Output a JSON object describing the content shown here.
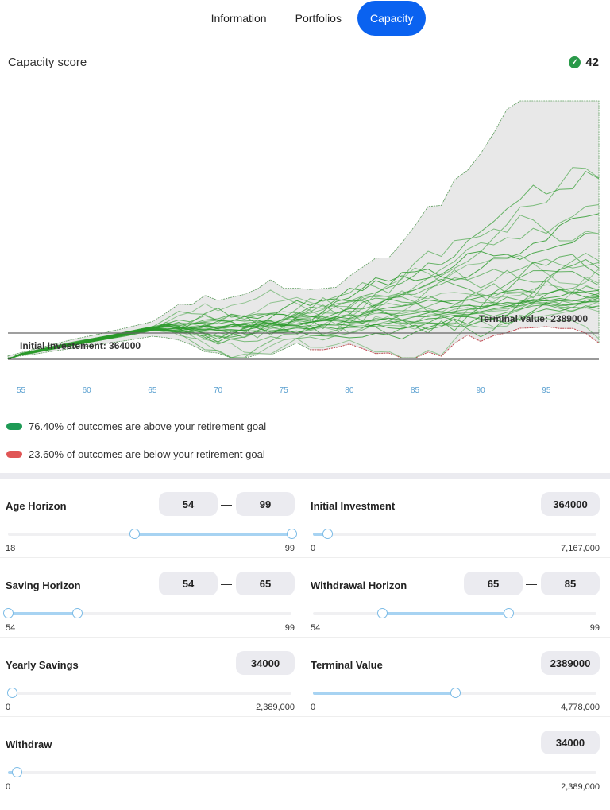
{
  "tabs": [
    "Information",
    "Portfolios",
    "Capacity"
  ],
  "active_tab": 2,
  "score": {
    "label": "Capacity score",
    "value": "42",
    "icon": "check-circle-icon"
  },
  "chart_data": {
    "type": "line",
    "x_range": [
      54,
      99
    ],
    "x_ticks": [
      "55",
      "60",
      "65",
      "70",
      "75",
      "80",
      "85",
      "90",
      "95"
    ],
    "initial_label": "Initial Investement: 364000",
    "terminal_label": "Terminal value: 2389000",
    "initial_investment": 364000,
    "terminal_value": 2389000,
    "simulations": 30,
    "colors": {
      "paths": "#2a9a2a",
      "band": "#e8e8e8",
      "low": "#d05060"
    }
  },
  "legend": [
    {
      "text": "76.40% of outcomes are above your retirement goal",
      "color": "#1e9a55"
    },
    {
      "text": "23.60% of outcomes are below your retirement goal",
      "color": "#e05555"
    }
  ],
  "controls": {
    "age": {
      "label": "Age Horizon",
      "from": "54",
      "to": "99",
      "min": "18",
      "max": "99",
      "sep": "—",
      "v1": 54,
      "v2": 99,
      "lo": 18,
      "hi": 99
    },
    "initial": {
      "label": "Initial Investment",
      "value": "364000",
      "min": "0",
      "max": "7,167,000",
      "v": 364000,
      "hi": 7167000
    },
    "saving": {
      "label": "Saving Horizon",
      "from": "54",
      "to": "65",
      "min": "54",
      "max": "99",
      "sep": "—",
      "v1": 54,
      "v2": 65,
      "lo": 54,
      "hi": 99
    },
    "withdrawal": {
      "label": "Withdrawal Horizon",
      "from": "65",
      "to": "85",
      "min": "54",
      "max": "99",
      "sep": "—",
      "v1": 65,
      "v2": 85,
      "lo": 54,
      "hi": 99
    },
    "yearly": {
      "label": "Yearly Savings",
      "value": "34000",
      "min": "0",
      "max": "2,389,000",
      "v": 34000,
      "hi": 2389000
    },
    "terminal": {
      "label": "Terminal Value",
      "value": "2389000",
      "min": "0",
      "max": "4,778,000",
      "v": 2389000,
      "hi": 4778000
    },
    "withdraw": {
      "label": "Withdraw",
      "value": "34000",
      "min": "0",
      "max": "2,389,000",
      "v": 34000,
      "hi": 2389000
    }
  }
}
